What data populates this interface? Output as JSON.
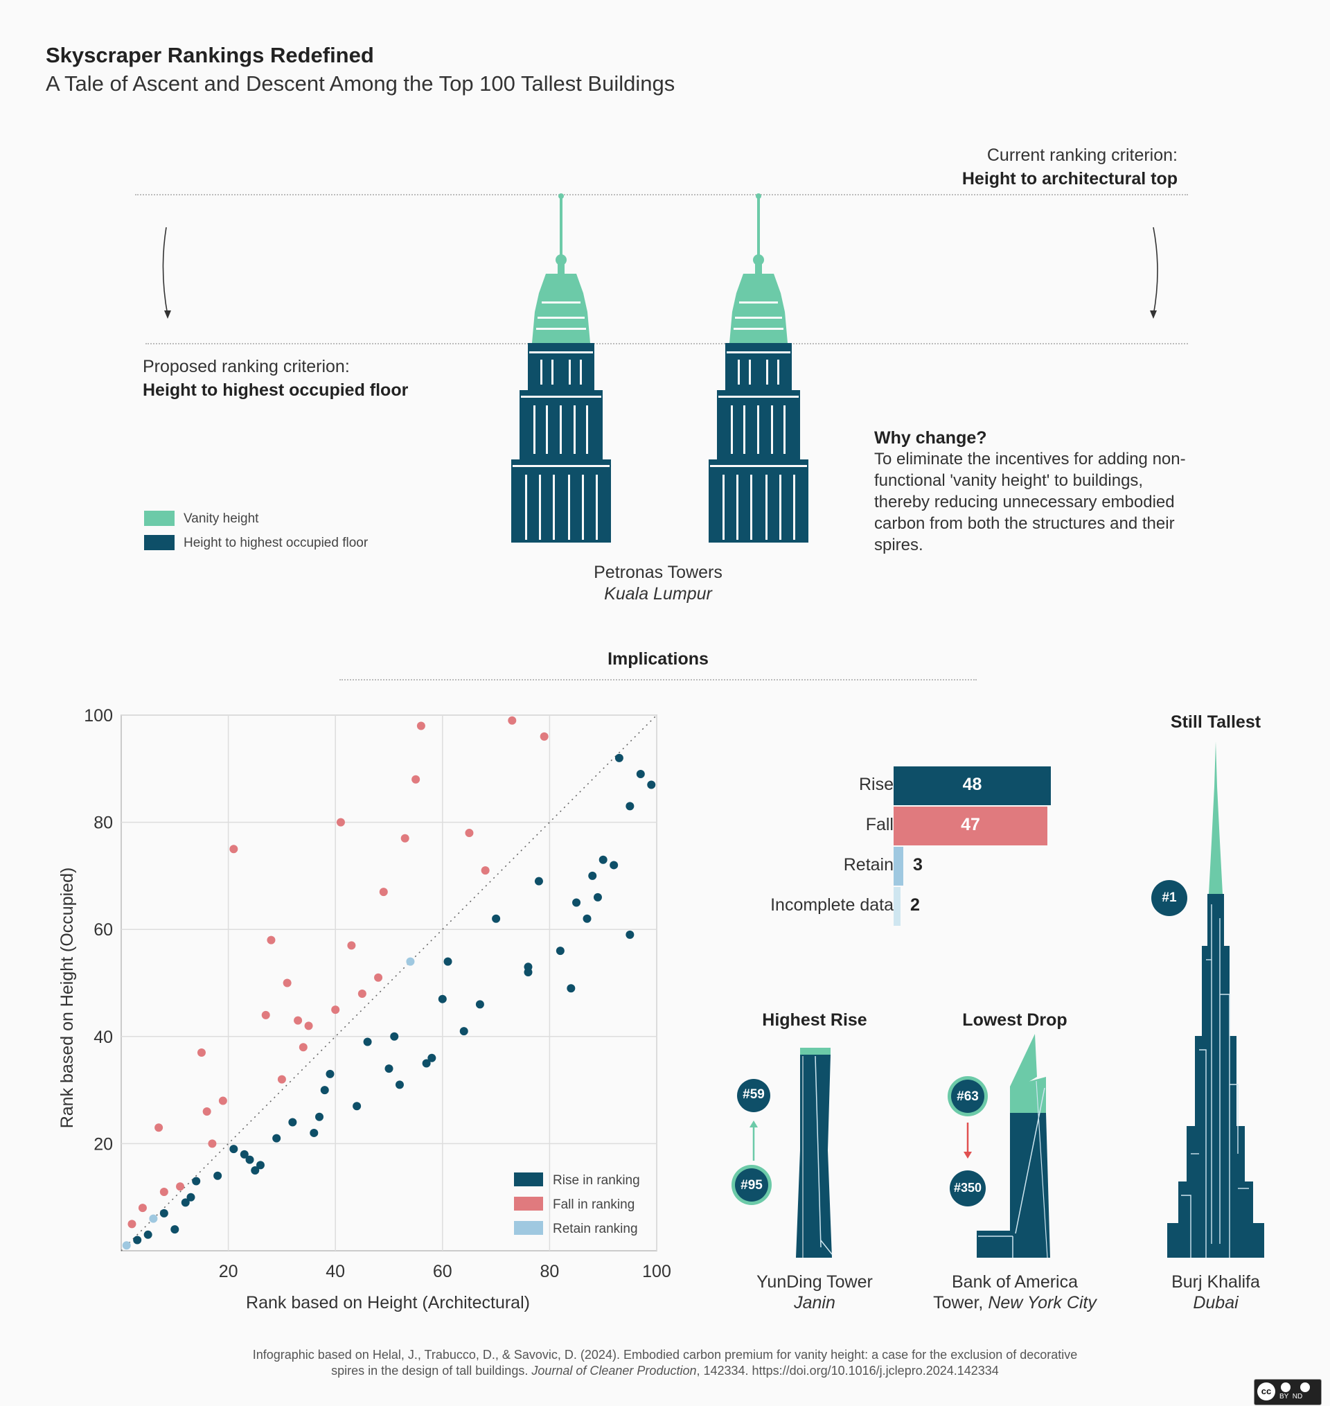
{
  "header": {
    "title": "Skyscraper Rankings Redefined",
    "subtitle": "A Tale of Ascent and Descent Among the Top 100 Tallest Buildings"
  },
  "colors": {
    "rise": "#0e4f68",
    "fall": "#e07a7e",
    "retain": "#9fc8e0",
    "vanity": "#6ccaa8",
    "occupied": "#0e4f68"
  },
  "criteria": {
    "current_label": "Current ranking criterion:",
    "current_value": "Height to architectural top",
    "proposed_label": "Proposed ranking criterion:",
    "proposed_value": "Height to highest occupied floor"
  },
  "top_legend": [
    {
      "label": "Vanity height",
      "color": "#6ccaa8"
    },
    {
      "label": "Height to highest occupied floor",
      "color": "#0e4f68"
    }
  ],
  "petronas": {
    "name": "Petronas Towers",
    "city": "Kuala Lumpur"
  },
  "why": {
    "heading": "Why change?",
    "body": "To eliminate the incentives for adding non-functional 'vanity height' to buildings, thereby reducing unnecessary embodied carbon from both the structures and their spires."
  },
  "implications_heading": "Implications",
  "chart_data": [
    {
      "type": "scatter",
      "title": "",
      "xlabel": "Rank based on Height (Architectural)",
      "ylabel": "Rank based on Height (Occupied)",
      "xlim": [
        0,
        100
      ],
      "ylim": [
        0,
        100
      ],
      "xticks": [
        20,
        40,
        60,
        80,
        100
      ],
      "yticks": [
        20,
        40,
        60,
        80,
        100
      ],
      "grid": true,
      "diagonal": true,
      "legend_position": "bottom-right",
      "legend": [
        "Rise in ranking",
        "Fall in ranking",
        "Retain ranking"
      ],
      "series": [
        {
          "name": "Rise in ranking",
          "color": "#0e4f68",
          "points": [
            [
              3,
              2
            ],
            [
              5,
              3
            ],
            [
              8,
              7
            ],
            [
              10,
              4
            ],
            [
              12,
              9
            ],
            [
              13,
              10
            ],
            [
              14,
              13
            ],
            [
              18,
              14
            ],
            [
              21,
              19
            ],
            [
              23,
              18
            ],
            [
              24,
              17
            ],
            [
              25,
              15
            ],
            [
              26,
              16
            ],
            [
              29,
              21
            ],
            [
              32,
              24
            ],
            [
              36,
              22
            ],
            [
              37,
              25
            ],
            [
              38,
              30
            ],
            [
              39,
              33
            ],
            [
              44,
              27
            ],
            [
              46,
              39
            ],
            [
              50,
              34
            ],
            [
              51,
              40
            ],
            [
              52,
              31
            ],
            [
              57,
              35
            ],
            [
              58,
              36
            ],
            [
              60,
              47
            ],
            [
              61,
              54
            ],
            [
              64,
              41
            ],
            [
              67,
              46
            ],
            [
              70,
              62
            ],
            [
              76,
              52
            ],
            [
              76,
              53
            ],
            [
              78,
              69
            ],
            [
              82,
              56
            ],
            [
              84,
              49
            ],
            [
              85,
              65
            ],
            [
              87,
              62
            ],
            [
              88,
              70
            ],
            [
              89,
              66
            ],
            [
              90,
              73
            ],
            [
              92,
              72
            ],
            [
              93,
              92
            ],
            [
              95,
              83
            ],
            [
              95,
              59
            ],
            [
              97,
              89
            ],
            [
              99,
              87
            ]
          ]
        },
        {
          "name": "Fall in ranking",
          "color": "#e07a7e",
          "points": [
            [
              2,
              5
            ],
            [
              4,
              8
            ],
            [
              7,
              23
            ],
            [
              8,
              11
            ],
            [
              11,
              12
            ],
            [
              15,
              37
            ],
            [
              16,
              26
            ],
            [
              17,
              20
            ],
            [
              19,
              28
            ],
            [
              21,
              75
            ],
            [
              27,
              44
            ],
            [
              28,
              58
            ],
            [
              30,
              32
            ],
            [
              31,
              50
            ],
            [
              33,
              43
            ],
            [
              34,
              38
            ],
            [
              35,
              42
            ],
            [
              40,
              45
            ],
            [
              41,
              80
            ],
            [
              43,
              57
            ],
            [
              45,
              48
            ],
            [
              48,
              51
            ],
            [
              49,
              67
            ],
            [
              53,
              77
            ],
            [
              55,
              88
            ],
            [
              56,
              98
            ],
            [
              65,
              78
            ],
            [
              68,
              71
            ],
            [
              73,
              99
            ],
            [
              79,
              96
            ]
          ]
        },
        {
          "name": "Retain ranking",
          "color": "#9fc8e0",
          "points": [
            [
              1,
              1
            ],
            [
              6,
              6
            ],
            [
              54,
              54
            ]
          ]
        }
      ]
    },
    {
      "type": "bar",
      "orientation": "horizontal",
      "categories": [
        "Rise",
        "Fall",
        "Retain",
        "Incomplete data"
      ],
      "values": [
        48,
        47,
        3,
        2
      ],
      "colors": [
        "#0e4f68",
        "#e07a7e",
        "#9fc8e0",
        "#cfe6f0"
      ]
    }
  ],
  "summary_bars": [
    {
      "label": "Rise",
      "value": "48",
      "color": "#0e4f68"
    },
    {
      "label": "Fall",
      "value": "47",
      "color": "#e07a7e"
    },
    {
      "label": "Retain",
      "value": "3",
      "color": "#9fc8e0"
    },
    {
      "label": "Incomplete data",
      "value": "2",
      "color": "#cfe6f0"
    }
  ],
  "highest_rise": {
    "heading": "Highest Rise",
    "from_rank": "#95",
    "to_rank": "#59",
    "name": "YunDing Tower",
    "city": "Janin"
  },
  "lowest_drop": {
    "heading": "Lowest Drop",
    "from_rank": "#63",
    "to_rank": "#350",
    "name_line1": "Bank of America",
    "name_line2": "Tower,",
    "city": "New York City"
  },
  "still_tallest": {
    "heading": "Still Tallest",
    "rank": "#1",
    "name": "Burj Khalifa",
    "city": "Dubai"
  },
  "footer": {
    "line1": "Infographic based on Helal, J., Trabucco, D., & Savovic, D. (2024). Embodied carbon premium for vanity height: a case for the exclusion of decorative",
    "line2_pre": "spires in the design of tall buildings.",
    "journal": "Journal of Cleaner Production",
    "line2_post": ", 142334. https://doi.org/10.1016/j.jclepro.2024.142334"
  },
  "license": {
    "label": "cc",
    "sub": "BY  ND"
  }
}
